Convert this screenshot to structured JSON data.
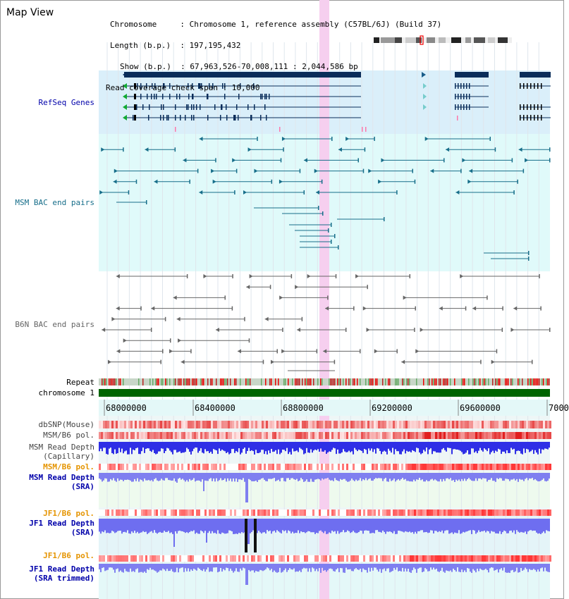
{
  "header": {
    "title": "Map View",
    "info_lines": [
      "Chromosome     : Chromosome 1, reference assembly (C57BL/6J) (Build 37)",
      "Length (b.p.)  : 197,195,432",
      "Show (b.p.)  : 67,963,526-70,008,111 : 2,044,586 bp",
      "Read coverage check span : 10,000"
    ]
  },
  "tracks": {
    "refseq": "RefSeq Genes",
    "msm_bac": "MSM BAC end pairs",
    "b6n_bac": "B6N BAC end pairs",
    "repeat": "Repeat",
    "chromosome": "chromosome 1",
    "dbsnp": "dbSNP(Mouse)",
    "msm_b6_pol_1": "MSM/B6 pol.",
    "msm_read_depth_cap_1": "MSM Read Depth",
    "msm_read_depth_cap_2": "(Capillary)",
    "msm_b6_pol_2": "MSM/B6 pol.",
    "msm_read_depth_sra_1": "MSM Read Depth",
    "msm_read_depth_sra_2": "(SRA)",
    "jf1_b6_pol_1": "JF1/B6 pol.",
    "jf1_read_depth_1": "JF1 Read Depth",
    "jf1_read_depth_2": "(SRA)",
    "jf1_b6_pol_2": "JF1/B6 pol.",
    "jf1_read_depth_trim_1": "JF1 Read Depth",
    "jf1_read_depth_trim_2": "(SRA trimmed)"
  },
  "axis": {
    "ticks": [
      "68000000",
      "68400000",
      "68800000",
      "69200000",
      "69600000",
      "7000"
    ]
  },
  "colors": {
    "refseq_bg": "#daeffa",
    "msm_bg": "#e0fafa",
    "gene": "#0a2d5a",
    "msm": "#176e8a",
    "b6n": "#666666",
    "highlight": "#f6cff0",
    "chromosome_bar": "#006400",
    "label_blue": "#0000aa",
    "label_orange": "#e59400",
    "label_teal": "#176e8a"
  }
}
